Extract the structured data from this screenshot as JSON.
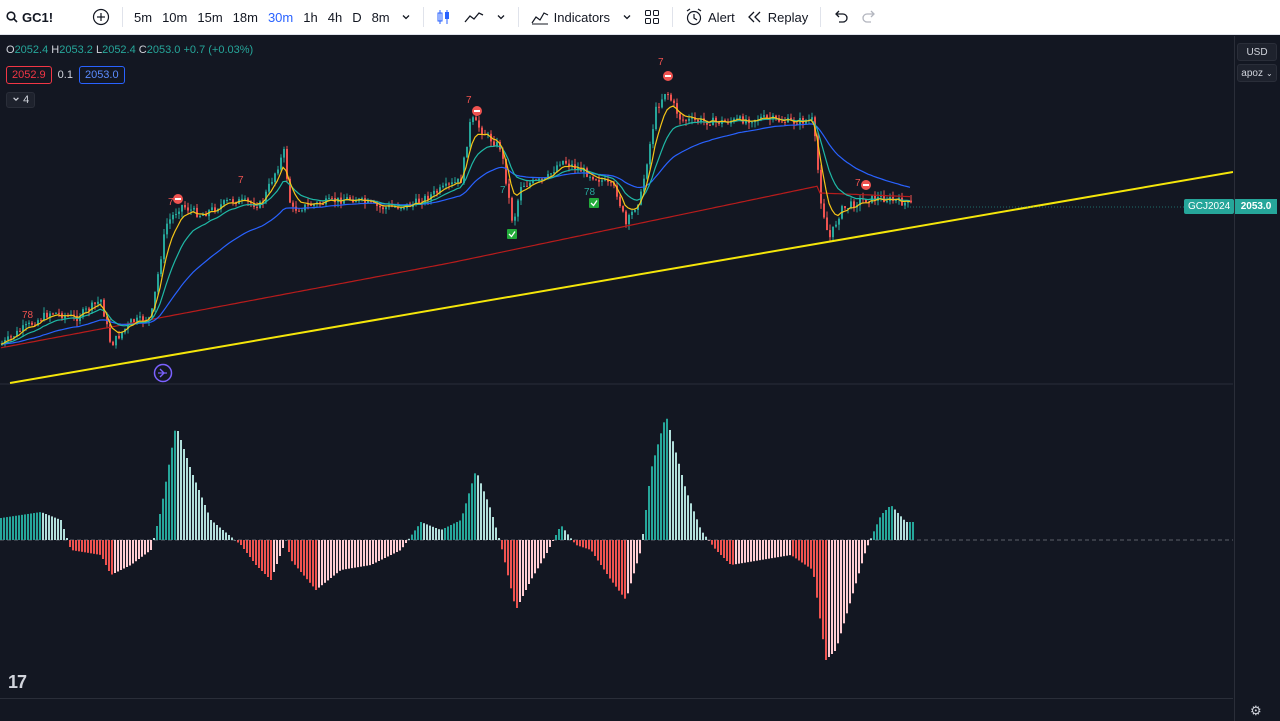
{
  "toolbar": {
    "symbol": "GC1!",
    "intervals": [
      "5m",
      "10m",
      "15m",
      "18m",
      "30m",
      "1h",
      "4h",
      "D",
      "8m"
    ],
    "active_interval": "30m",
    "indicators_label": "Indicators",
    "alert_label": "Alert",
    "replay_label": "Replay"
  },
  "legend": {
    "o_label": "O",
    "o": "2052.4",
    "h_label": "H",
    "h": "2053.2",
    "l_label": "L",
    "l": "2052.4",
    "c_label": "C",
    "c": "2053.0",
    "change": "+0.7 (+0.03%)"
  },
  "indicator_row": {
    "bid": "2052.9",
    "spread": "0.1",
    "ask": "2053.0"
  },
  "collapse": {
    "count": "4"
  },
  "price_scale": {
    "currency": "USD",
    "mode": "apoz",
    "symbol_tag": "GCJ2024",
    "last_price": "2053.0"
  },
  "markers": {
    "seven": "7",
    "seventy_eight": "78"
  },
  "colors": {
    "bg": "#131722",
    "up": "#26a69a",
    "down": "#ef5350",
    "trend": "#f5e60a",
    "ema_fast": "#f5c518",
    "ema_mid": "#1fb8a6",
    "ema_slow": "#2962ff",
    "ema_long": "#b71c1c"
  },
  "icons": [
    "search-icon",
    "add-symbol-icon",
    "chevron-down-icon",
    "candles-icon",
    "line-chart-icon",
    "indicators-icon",
    "layout-icon",
    "alert-icon",
    "replay-icon",
    "undo-icon",
    "redo-icon",
    "settings-icon",
    "tradingview-logo"
  ]
}
